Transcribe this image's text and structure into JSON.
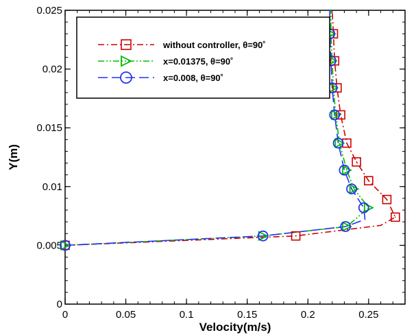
{
  "chart_data": {
    "type": "line",
    "title": "",
    "xlabel": "Velocity(m/s)",
    "ylabel": "Y(m)",
    "xlim": [
      0,
      0.28
    ],
    "ylim": [
      0,
      0.025
    ],
    "xticks": [
      0,
      0.05,
      0.1,
      0.15,
      0.2,
      0.25
    ],
    "xtick_labels": [
      "0",
      "0.05",
      "0.1",
      "0.15",
      "0.2",
      "0.25"
    ],
    "yticks": [
      0,
      0.005,
      0.01,
      0.015,
      0.02,
      0.025
    ],
    "ytick_labels": [
      "0",
      "0.005",
      "0.01",
      "0.015",
      "0.02",
      "0.025"
    ],
    "grid": false,
    "legend_position": "top",
    "series": [
      {
        "name": "without controller, θ=90˚",
        "color": "#cc0000",
        "dash": "dash-dot",
        "marker": "square",
        "points": [
          [
            0,
            0.005
          ],
          [
            0.19,
            0.0058
          ],
          [
            0.26,
            0.0067
          ],
          [
            0.272,
            0.0074
          ],
          [
            0.265,
            0.0089
          ],
          [
            0.25,
            0.0105
          ],
          [
            0.24,
            0.0121
          ],
          [
            0.232,
            0.0137
          ],
          [
            0.227,
            0.0161
          ],
          [
            0.224,
            0.0184
          ],
          [
            0.222,
            0.0207
          ],
          [
            0.221,
            0.023
          ],
          [
            0.22,
            0.025
          ]
        ],
        "markers": [
          [
            0,
            0.005
          ],
          [
            0.19,
            0.0058
          ],
          [
            0.272,
            0.0074
          ],
          [
            0.265,
            0.0089
          ],
          [
            0.25,
            0.0105
          ],
          [
            0.24,
            0.0121
          ],
          [
            0.232,
            0.0137
          ],
          [
            0.227,
            0.0161
          ],
          [
            0.224,
            0.0184
          ],
          [
            0.222,
            0.0207
          ],
          [
            0.221,
            0.023
          ]
        ]
      },
      {
        "name": "x=0.01375, θ=90˚",
        "color": "#00bb00",
        "dash": "dash-dot-dot",
        "marker": "triangle-right",
        "points": [
          [
            0,
            0.005
          ],
          [
            0.163,
            0.0058
          ],
          [
            0.232,
            0.0066
          ],
          [
            0.25,
            0.0082
          ],
          [
            0.238,
            0.0098
          ],
          [
            0.232,
            0.0114
          ],
          [
            0.226,
            0.0137
          ],
          [
            0.223,
            0.0161
          ],
          [
            0.221,
            0.0184
          ],
          [
            0.22,
            0.0207
          ],
          [
            0.219,
            0.023
          ],
          [
            0.219,
            0.025
          ]
        ],
        "markers": [
          [
            0,
            0.005
          ],
          [
            0.163,
            0.0058
          ],
          [
            0.232,
            0.0066
          ],
          [
            0.25,
            0.0082
          ],
          [
            0.238,
            0.0098
          ],
          [
            0.232,
            0.0114
          ],
          [
            0.226,
            0.0137
          ],
          [
            0.223,
            0.0161
          ],
          [
            0.221,
            0.0184
          ],
          [
            0.22,
            0.0207
          ],
          [
            0.219,
            0.023
          ]
        ]
      },
      {
        "name": "x=0.008, θ=90˚",
        "color": "#2233ee",
        "dash": "dash",
        "marker": "circle",
        "points": [
          [
            0,
            0.005
          ],
          [
            0.163,
            0.0058
          ],
          [
            0.231,
            0.0066
          ],
          [
            0.247,
            0.0072
          ],
          [
            0.246,
            0.0082
          ],
          [
            0.236,
            0.0098
          ],
          [
            0.23,
            0.0114
          ],
          [
            0.225,
            0.0137
          ],
          [
            0.222,
            0.0161
          ],
          [
            0.22,
            0.0184
          ],
          [
            0.219,
            0.0207
          ],
          [
            0.218,
            0.023
          ],
          [
            0.218,
            0.025
          ]
        ],
        "markers": [
          [
            0,
            0.005
          ],
          [
            0.163,
            0.0058
          ],
          [
            0.231,
            0.0066
          ],
          [
            0.246,
            0.0082
          ],
          [
            0.236,
            0.0098
          ],
          [
            0.23,
            0.0114
          ],
          [
            0.225,
            0.0137
          ],
          [
            0.222,
            0.0161
          ],
          [
            0.22,
            0.0184
          ],
          [
            0.219,
            0.0207
          ],
          [
            0.218,
            0.023
          ]
        ]
      }
    ]
  }
}
